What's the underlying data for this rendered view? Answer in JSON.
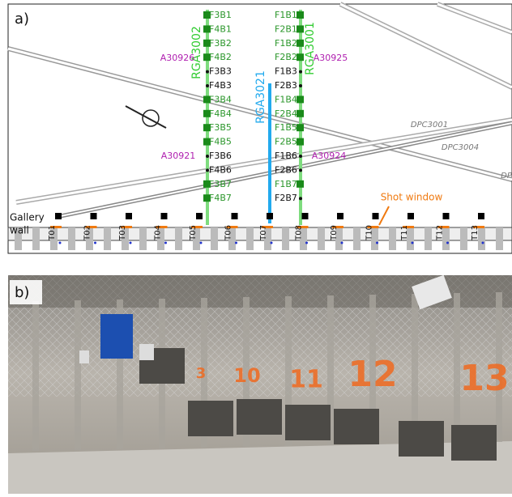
{
  "panel_a": {
    "label": "a)",
    "left_column": [
      {
        "text": "F3B1",
        "color": "#2a962a"
      },
      {
        "text": "F4B1",
        "color": "#2a962a"
      },
      {
        "text": "F3B2",
        "color": "#2a962a"
      },
      {
        "text": "F4B2",
        "color": "#2a962a"
      },
      {
        "text": "F3B3",
        "color": "#111111"
      },
      {
        "text": "F4B3",
        "color": "#111111"
      },
      {
        "text": "F3B4",
        "color": "#2a962a"
      },
      {
        "text": "F4B4",
        "color": "#2a962a"
      },
      {
        "text": "F3B5",
        "color": "#2a962a"
      },
      {
        "text": "F4B5",
        "color": "#2a962a"
      },
      {
        "text": "F3B6",
        "color": "#111111"
      },
      {
        "text": "F4B6",
        "color": "#111111"
      },
      {
        "text": "F3B7",
        "color": "#2a962a"
      },
      {
        "text": "F4B7",
        "color": "#2a962a"
      }
    ],
    "right_column": [
      {
        "text": "F1B1",
        "color": "#2a962a"
      },
      {
        "text": "F2B1",
        "color": "#2a962a"
      },
      {
        "text": "F1B2",
        "color": "#2a962a"
      },
      {
        "text": "F2B2",
        "color": "#2a962a"
      },
      {
        "text": "F1B3",
        "color": "#111111"
      },
      {
        "text": "F2B3",
        "color": "#111111"
      },
      {
        "text": "F1B4",
        "color": "#2a962a"
      },
      {
        "text": "F2B4",
        "color": "#2a962a"
      },
      {
        "text": "F1B5",
        "color": "#2a962a"
      },
      {
        "text": "F2B5",
        "color": "#2a962a"
      },
      {
        "text": "F1B6",
        "color": "#111111"
      },
      {
        "text": "F2B6",
        "color": "#111111"
      },
      {
        "text": "F1B7",
        "color": "#2a962a"
      },
      {
        "text": "F2B7",
        "color": "#111111"
      }
    ],
    "boreholes": [
      {
        "text": "RGA3002",
        "color": "#33cc33"
      },
      {
        "text": "RGA3021",
        "color": "#22aaee"
      },
      {
        "text": "RGA3001",
        "color": "#33cc33"
      }
    ],
    "sensors": [
      "A30926",
      "A30925",
      "A30921",
      "A30924"
    ],
    "profiles": [
      "DPC3001",
      "DPC3004",
      "DP"
    ],
    "shot_window": "Shot window",
    "gallery_wall": [
      "Gallery",
      "wall"
    ],
    "stations": [
      "T01",
      "T02",
      "T03",
      "T04",
      "T05",
      "T06",
      "T07",
      "T08",
      "T09",
      "T10",
      "T11",
      "T12",
      "T13"
    ]
  },
  "panel_b": {
    "label": "b)",
    "painted_numbers": [
      "3",
      "10",
      "11",
      "12",
      "13"
    ]
  }
}
